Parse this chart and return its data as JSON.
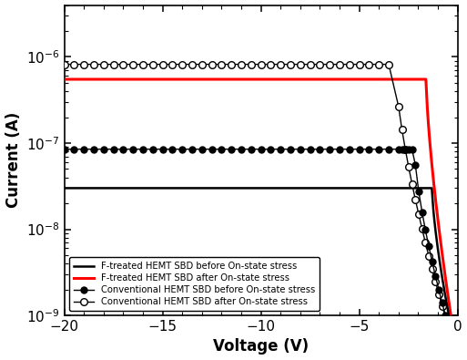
{
  "title": "",
  "xlabel": "Voltage (V)",
  "ylabel": "Current (A)",
  "xlim": [
    -20,
    0
  ],
  "ylim": [
    1e-09,
    4e-06
  ],
  "legend_entries": [
    "F-treated HEMT SBD before On-state stress",
    "F-treated HEMT SBD after On-state stress",
    "Conventional HEMT SBD before On-state stress",
    "Conventional HEMT SBD after On-state stress"
  ],
  "background_color": "#ffffff",
  "I_flat_c1": 3e-08,
  "I_flat_c2": 5.5e-07,
  "I_flat_c3": 8.5e-08,
  "I_flat_c4": 8.2e-07,
  "knee_c1": -1.3,
  "knee_c2": -1.6,
  "knee_c3": -2.2,
  "knee_c4": -3.2,
  "n_c1": 0.08,
  "n_c2": 0.08,
  "n_c3": 0.1,
  "n_c4": 0.13
}
